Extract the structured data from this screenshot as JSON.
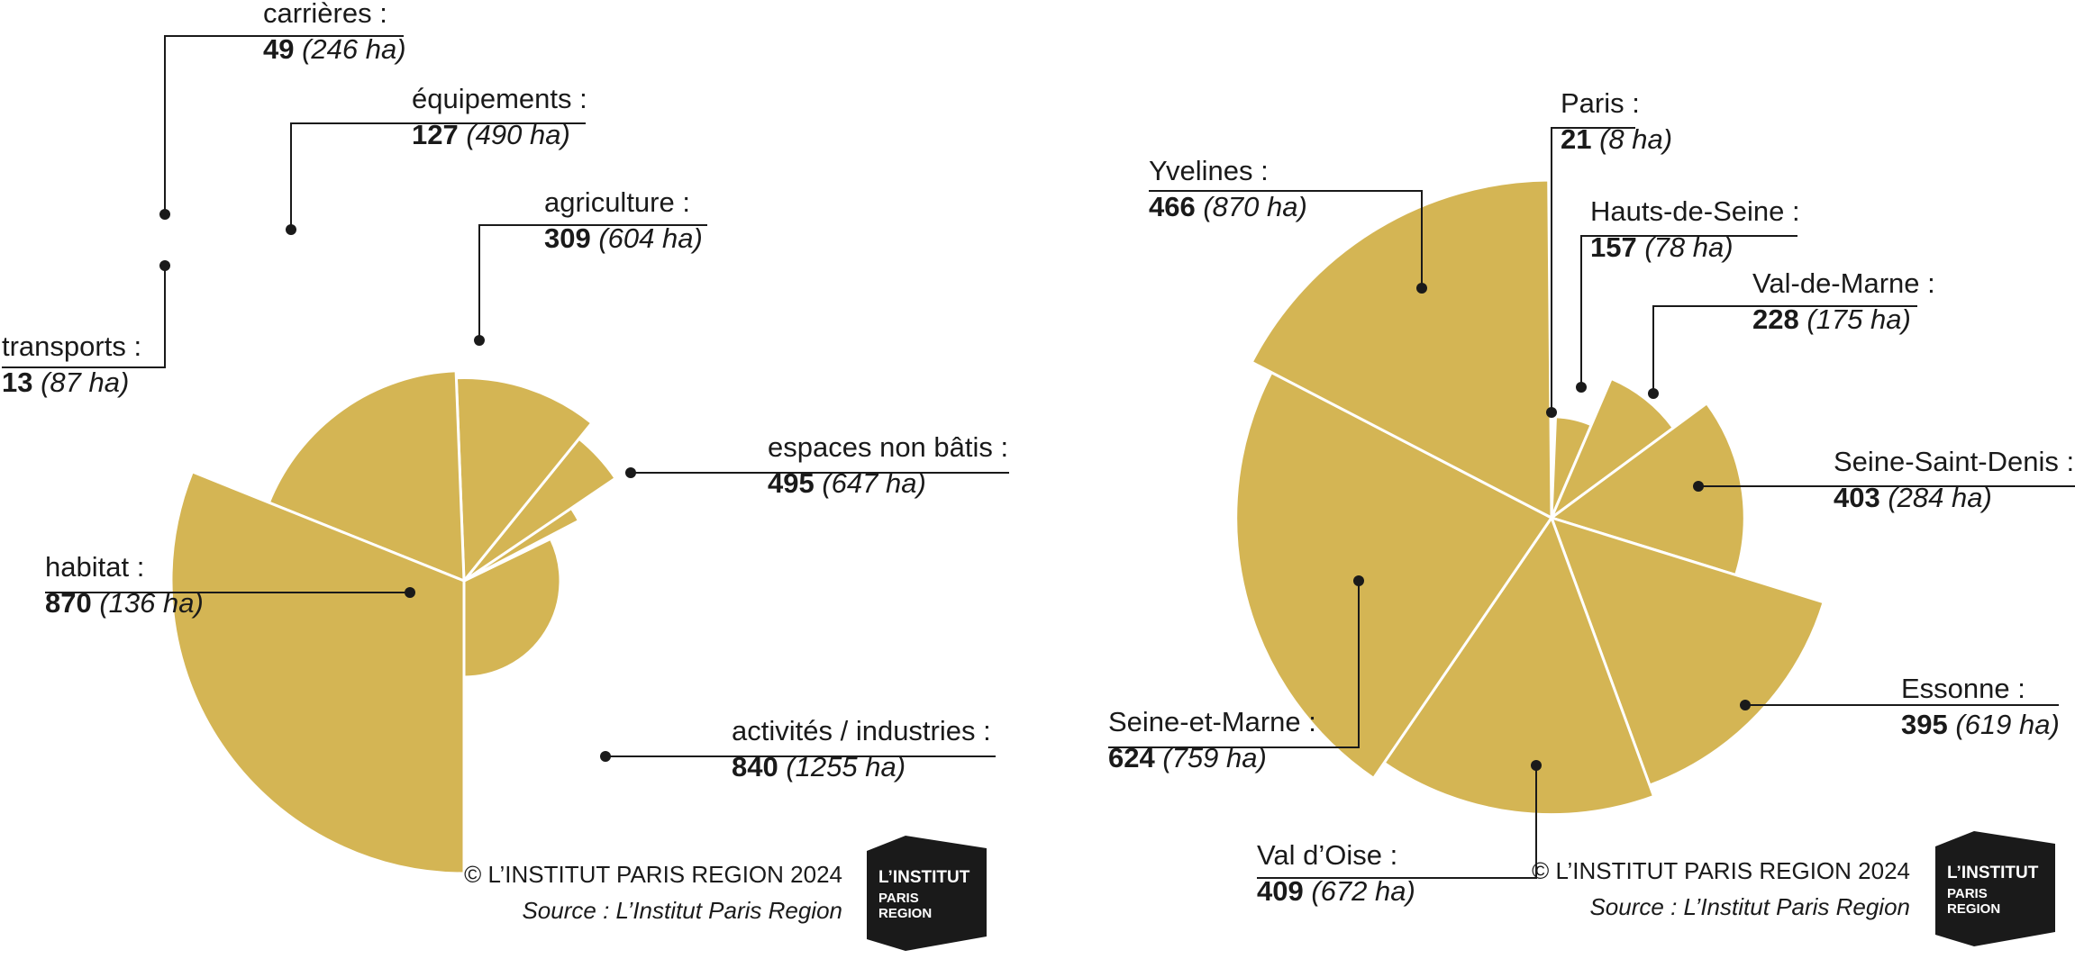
{
  "chart_data": [
    {
      "type": "pie",
      "variant": "polar-area",
      "colors": {
        "slice": "#d4b554",
        "separator": "#ffffff",
        "leader": "#1a1a1a"
      },
      "slices": [
        {
          "name": "habitat :",
          "value": 870,
          "value_label": "870",
          "area_label": "(136 ha)",
          "area": 136
        },
        {
          "name": "transports :",
          "value": 13,
          "value_label": "13",
          "area_label": "(87 ha)",
          "area": 87
        },
        {
          "name": "carrières :",
          "value": 49,
          "value_label": "49",
          "area_label": "(246 ha)",
          "area": 246
        },
        {
          "name": "équipements :",
          "value": 127,
          "value_label": "127",
          "area_label": "(490 ha)",
          "area": 490
        },
        {
          "name": "agriculture :",
          "value": 309,
          "value_label": "309",
          "area_label": "(604 ha)",
          "area": 604
        },
        {
          "name": "espaces non bâtis :",
          "value": 495,
          "value_label": "495",
          "area_label": "(647 ha)",
          "area": 647
        },
        {
          "name": "activités / industries :",
          "value": 840,
          "value_label": "840",
          "area_label": "(1255 ha)",
          "area": 1255
        }
      ],
      "credit": "© L’INSTITUT PARIS REGION 2024",
      "source": "Source : L’Institut Paris Region",
      "logo": {
        "line1": "L’INSTITUT",
        "line2": "PARIS",
        "line3": "REGION"
      }
    },
    {
      "type": "pie",
      "variant": "polar-area",
      "colors": {
        "slice": "#d4b554",
        "separator": "#ffffff",
        "leader": "#1a1a1a"
      },
      "slices": [
        {
          "name": "Paris :",
          "value": 21,
          "value_label": "21",
          "area_label": "(8 ha)",
          "area": 8
        },
        {
          "name": "Hauts-de-Seine :",
          "value": 157,
          "value_label": "157",
          "area_label": "(78 ha)",
          "area": 78
        },
        {
          "name": "Val-de-Marne :",
          "value": 228,
          "value_label": "228",
          "area_label": "(175 ha)",
          "area": 175
        },
        {
          "name": "Seine-Saint-Denis :",
          "value": 403,
          "value_label": "403",
          "area_label": "(284 ha)",
          "area": 284
        },
        {
          "name": "Essonne :",
          "value": 395,
          "value_label": "395",
          "area_label": "(619 ha)",
          "area": 619
        },
        {
          "name": "Val d’Oise :",
          "value": 409,
          "value_label": "409",
          "area_label": "(672 ha)",
          "area": 672
        },
        {
          "name": "Seine-et-Marne :",
          "value": 624,
          "value_label": "624",
          "area_label": "(759 ha)",
          "area": 759
        },
        {
          "name": "Yvelines :",
          "value": 466,
          "value_label": "466",
          "area_label": "(870 ha)",
          "area": 870
        }
      ],
      "credit": "© L’INSTITUT PARIS REGION 2024",
      "source": "Source : L’Institut Paris Region",
      "logo": {
        "line1": "L’INSTITUT",
        "line2": "PARIS",
        "line3": "REGION"
      }
    }
  ]
}
